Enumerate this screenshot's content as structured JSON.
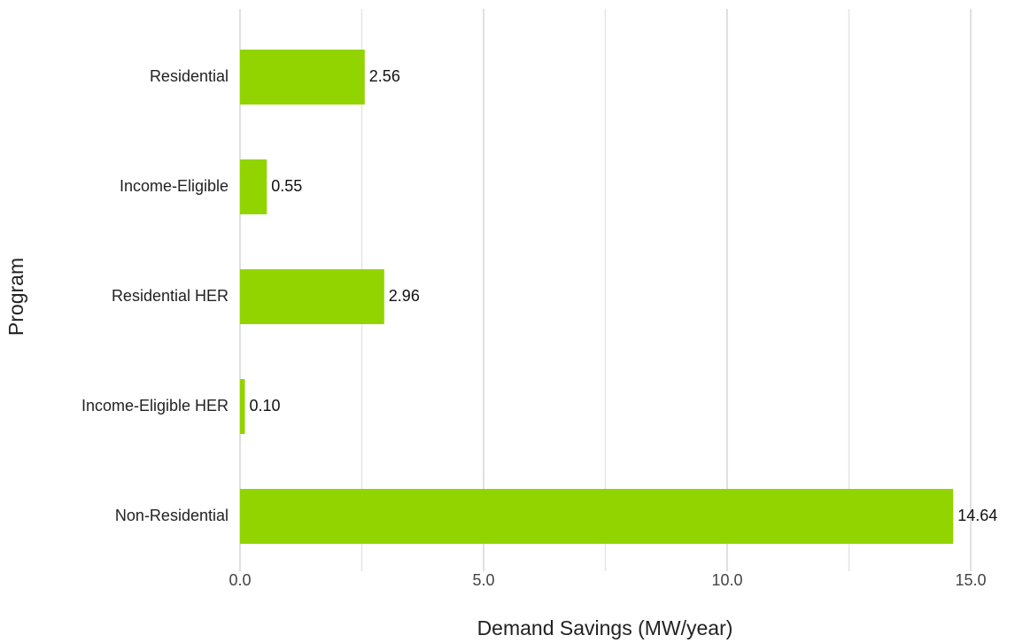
{
  "chart_data": {
    "type": "barh",
    "categories": [
      "Residential",
      "Income-Eligible",
      "Residential HER",
      "Income-Eligible HER",
      "Non-Residential"
    ],
    "values": [
      2.56,
      0.55,
      2.96,
      0.1,
      14.64
    ],
    "value_labels": [
      "2.56",
      "0.55",
      "2.96",
      "0.10",
      "14.64"
    ],
    "color": "#92d400",
    "xlabel": "Demand Savings (MW/year)",
    "ylabel": "Program",
    "xlim": [
      0,
      15
    ],
    "xticks": [
      {
        "value": 0,
        "label": "0.0"
      },
      {
        "value": 5,
        "label": "5.0"
      },
      {
        "value": 10,
        "label": "10.0"
      },
      {
        "value": 15,
        "label": "15.0"
      }
    ],
    "minor_xticks": [
      2.5,
      7.5,
      12.5
    ],
    "grid": true
  }
}
